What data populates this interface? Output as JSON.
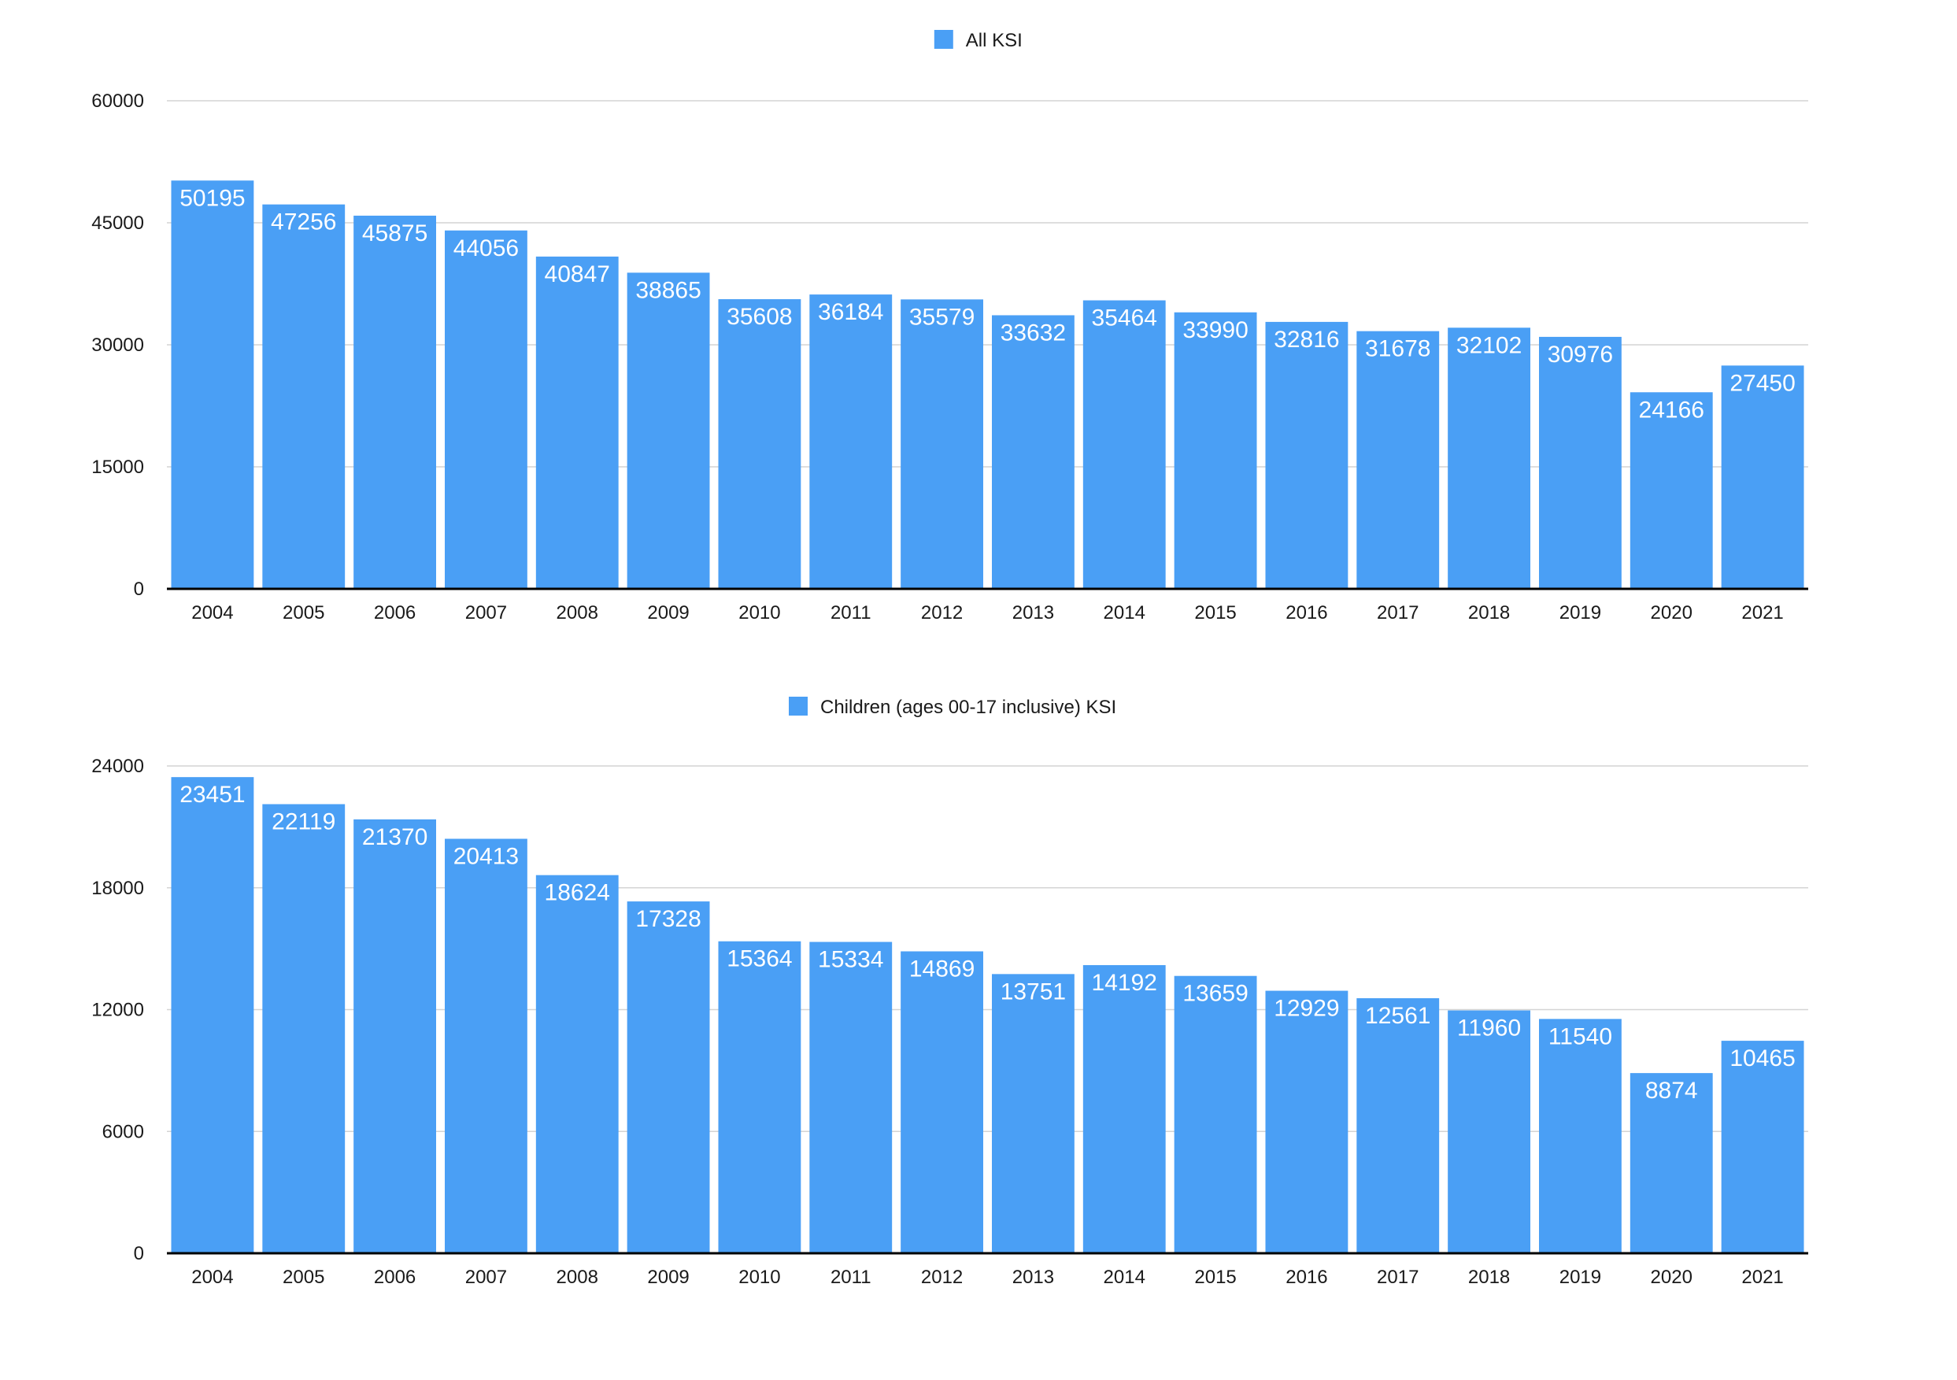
{
  "chart_data": [
    {
      "type": "bar",
      "categories": [
        "2004",
        "2005",
        "2006",
        "2007",
        "2008",
        "2009",
        "2010",
        "2011",
        "2012",
        "2013",
        "2014",
        "2015",
        "2016",
        "2017",
        "2018",
        "2019",
        "2020",
        "2021"
      ],
      "series": [
        {
          "name": "All KSI",
          "color": "#4a9ff5",
          "values": [
            50195,
            47256,
            45875,
            44056,
            40847,
            38865,
            35608,
            36184,
            35579,
            33632,
            35464,
            33990,
            32816,
            31678,
            32102,
            30976,
            24166,
            27450
          ]
        }
      ],
      "ylim": [
        0,
        60000
      ],
      "yticks": [
        0,
        15000,
        30000,
        45000,
        60000
      ],
      "ytick_labels": [
        "0",
        "15000",
        "30000",
        "45000",
        "60000"
      ],
      "grid": true,
      "legend_position": "top-center",
      "data_labels": true
    },
    {
      "type": "bar",
      "categories": [
        "2004",
        "2005",
        "2006",
        "2007",
        "2008",
        "2009",
        "2010",
        "2011",
        "2012",
        "2013",
        "2014",
        "2015",
        "2016",
        "2017",
        "2018",
        "2019",
        "2020",
        "2021"
      ],
      "series": [
        {
          "name": "Children (ages 00-17 inclusive) KSI",
          "color": "#4a9ff5",
          "values": [
            23451,
            22119,
            21370,
            20413,
            18624,
            17328,
            15364,
            15334,
            14869,
            13751,
            14192,
            13659,
            12929,
            12561,
            11960,
            11540,
            8874,
            10465
          ]
        }
      ],
      "ylim": [
        0,
        24000
      ],
      "yticks": [
        0,
        6000,
        12000,
        18000,
        24000
      ],
      "ytick_labels": [
        "0",
        "6000",
        "12000",
        "18000",
        "24000"
      ],
      "grid": true,
      "legend_position": "top-center",
      "data_labels": true
    }
  ]
}
